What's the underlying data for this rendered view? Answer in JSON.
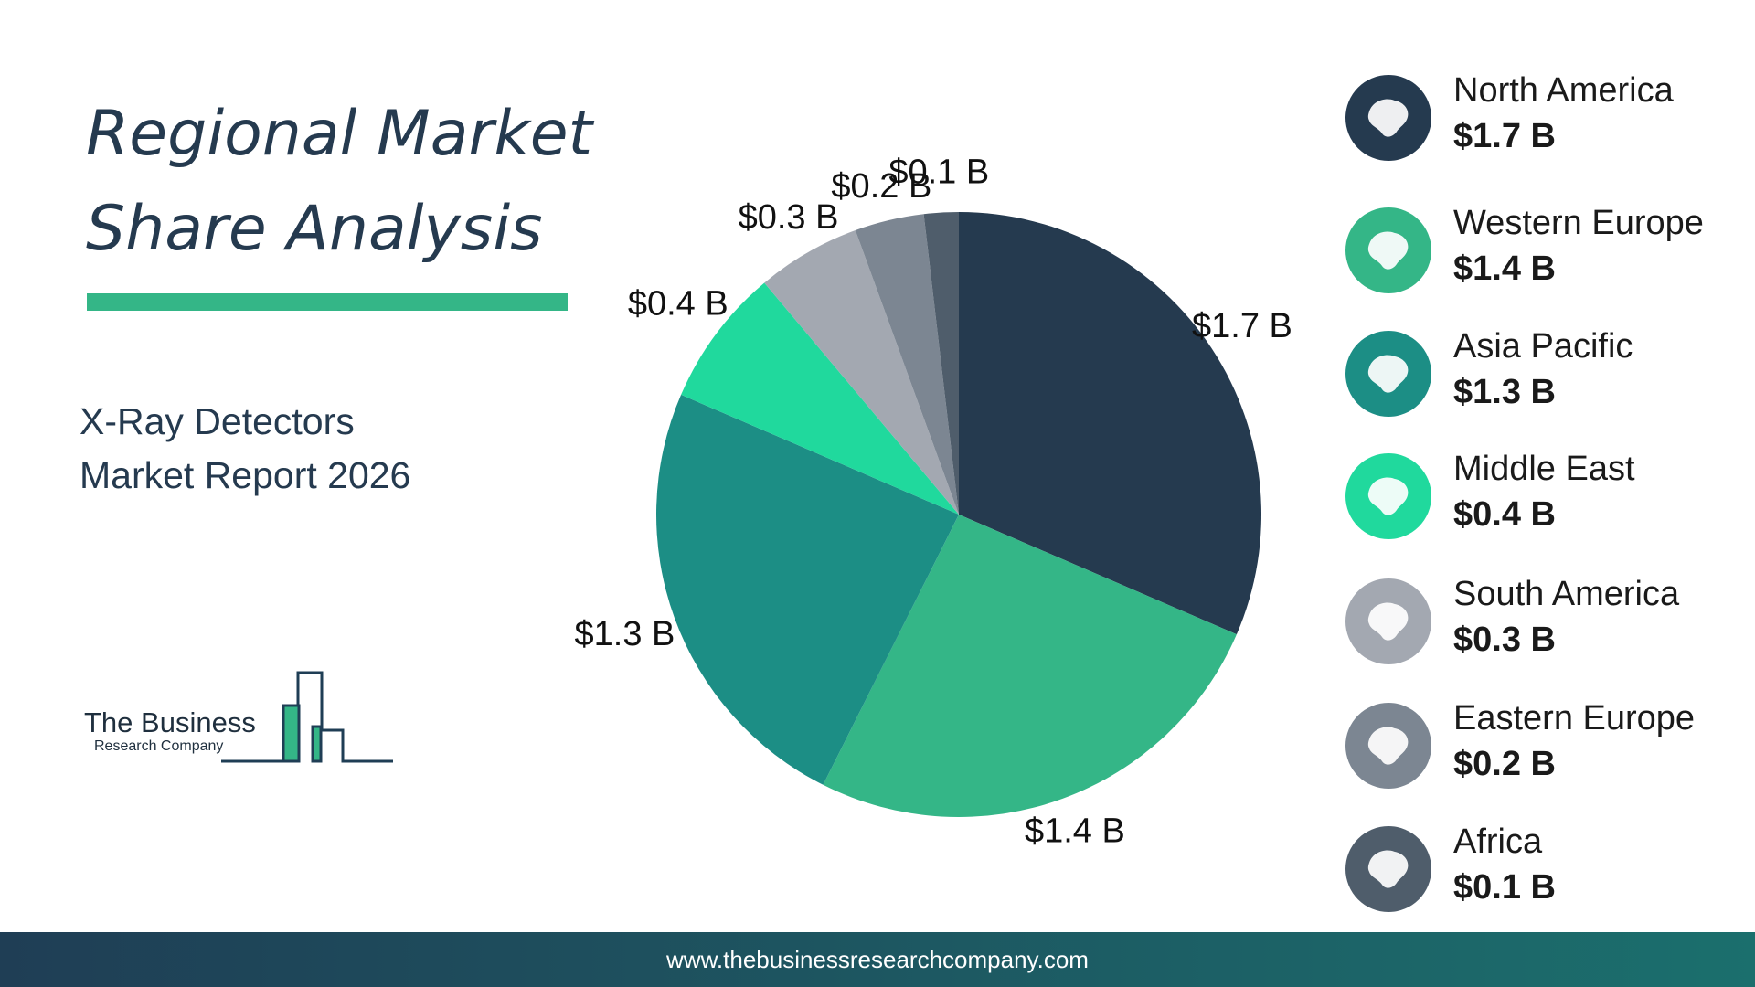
{
  "title": {
    "line1": "Regional Market",
    "line2": "Share Analysis"
  },
  "subtitle": {
    "line1": "X-Ray Detectors",
    "line2": "Market Report 2026"
  },
  "logo": {
    "name": "The Business",
    "tagline": "Research Company"
  },
  "footer": {
    "url": "www.thebusinessresearchcompany.com"
  },
  "chart_data": {
    "type": "pie",
    "title": "",
    "categories": [
      "North America",
      "Western Europe",
      "Asia Pacific",
      "Middle East",
      "South America",
      "Eastern Europe",
      "Africa"
    ],
    "values": [
      1.7,
      1.4,
      1.3,
      0.4,
      0.3,
      0.2,
      0.1
    ],
    "value_labels": [
      "$1.7 B",
      "$1.4 B",
      "$1.3 B",
      "$0.4 B",
      "$0.3 B",
      "$0.2 B",
      "$0.1 B"
    ],
    "unit": "$ B",
    "colors": [
      "#253a4f",
      "#34b687",
      "#1c8e85",
      "#20d99d",
      "#a3a8b1",
      "#7c8692",
      "#4f5d6b"
    ],
    "start": "12 o'clock",
    "direction": "clockwise",
    "legend_position": "right"
  },
  "legend": [
    {
      "name": "North America",
      "value": "$1.7 B",
      "color": "#253a4f",
      "icon": "north-america-map-icon"
    },
    {
      "name": "Western Europe",
      "value": "$1.4 B",
      "color": "#34b687",
      "icon": "western-europe-map-icon"
    },
    {
      "name": "Asia Pacific",
      "value": "$1.3 B",
      "color": "#1c8e85",
      "icon": "asia-pacific-map-icon"
    },
    {
      "name": "Middle East",
      "value": "$0.4 B",
      "color": "#20d99d",
      "icon": "middle-east-map-icon"
    },
    {
      "name": "South America",
      "value": "$0.3 B",
      "color": "#a3a8b1",
      "icon": "south-america-map-icon"
    },
    {
      "name": "Eastern Europe",
      "value": "$0.2 B",
      "color": "#7c8692",
      "icon": "eastern-europe-map-icon"
    },
    {
      "name": "Africa",
      "value": "$0.1 B",
      "color": "#4f5d6b",
      "icon": "africa-map-icon"
    }
  ]
}
